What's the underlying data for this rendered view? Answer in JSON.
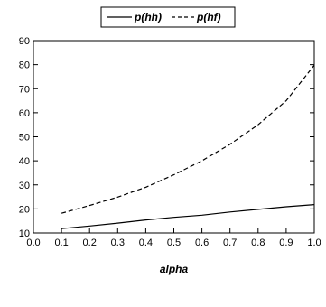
{
  "chart_data": {
    "type": "line",
    "title": "",
    "xlabel": "alpha",
    "ylabel": "",
    "xlim": [
      0.0,
      1.0
    ],
    "ylim": [
      10,
      90
    ],
    "grid": false,
    "legend_position": "top-center",
    "x_ticks": [
      "0.0",
      "0.1",
      "0.2",
      "0.3",
      "0.4",
      "0.5",
      "0.6",
      "0.7",
      "0.8",
      "0.9",
      "1.0"
    ],
    "y_ticks": [
      "10",
      "20",
      "30",
      "40",
      "50",
      "60",
      "70",
      "80",
      "90"
    ],
    "x": [
      0.1,
      0.2,
      0.3,
      0.4,
      0.5,
      0.6,
      0.7,
      0.8,
      0.9,
      1.0
    ],
    "series": [
      {
        "name": "p(hh)",
        "line_style": "solid",
        "color": "#000000",
        "values": [
          11.8,
          12.9,
          14.1,
          15.4,
          16.5,
          17.4,
          18.7,
          19.8,
          20.9,
          21.8
        ]
      },
      {
        "name": "p(hf)",
        "line_style": "dashed",
        "color": "#000000",
        "values": [
          18.2,
          21.4,
          24.9,
          29.0,
          34.2,
          40.0,
          46.9,
          55.0,
          65.0,
          79.8
        ]
      }
    ]
  }
}
